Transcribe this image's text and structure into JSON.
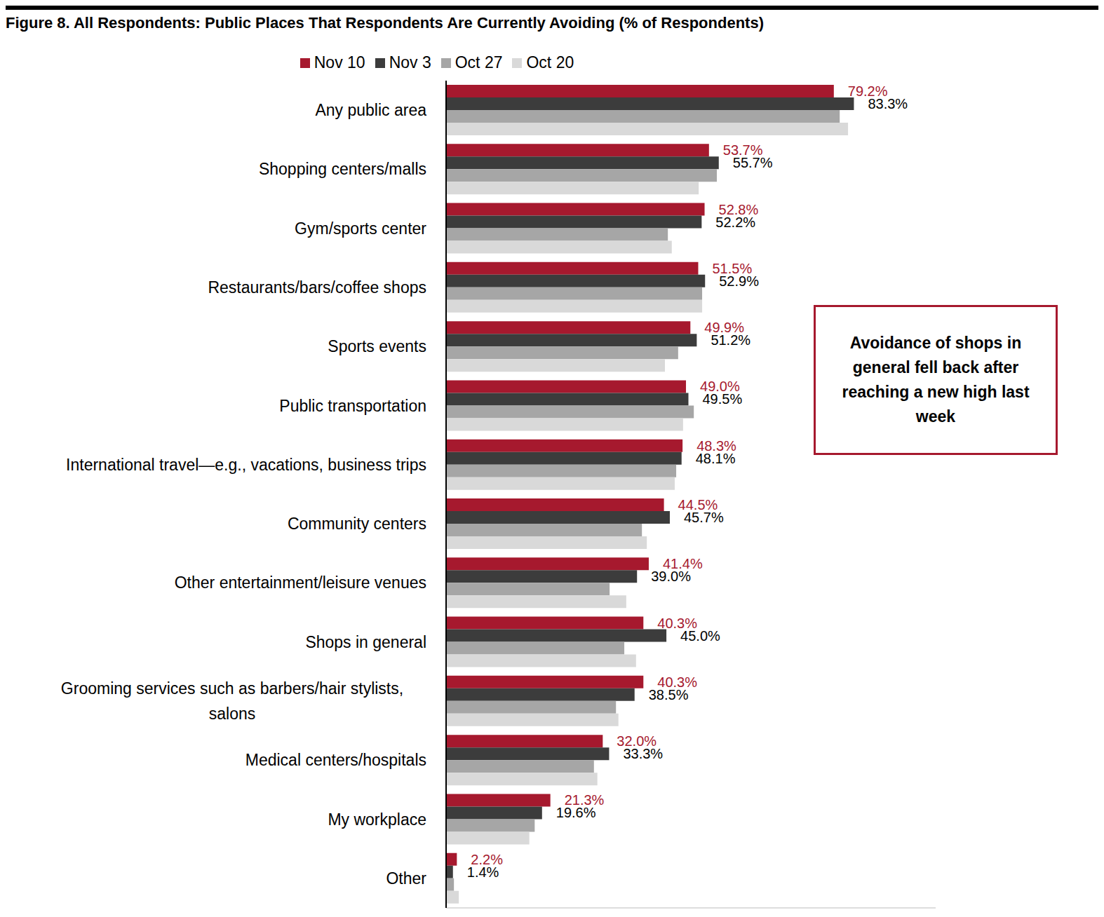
{
  "chart_data": {
    "type": "bar",
    "orientation": "horizontal",
    "title": "Figure 8. All Respondents: Public Places That Respondents Are Currently Avoiding (% of Respondents)",
    "annotation": "Avoidance of shops in general fell back after reaching a new high last week",
    "categories": [
      "Any public area",
      "Shopping centers/malls",
      "Gym/sports center",
      "Restaurants/bars/coffee shops",
      "Sports events",
      "Public transportation",
      "International travel—e.g., vacations, business trips",
      "Community centers",
      "Other entertainment/leisure venues",
      "Shops in general",
      "Grooming services such as barbers/hair stylists, salons",
      "Medical centers/hospitals",
      "My workplace",
      "Other"
    ],
    "series": [
      {
        "name": "Nov 10",
        "color": "#a6192e",
        "data_labels": true,
        "values": [
          79.2,
          53.7,
          52.8,
          51.5,
          49.9,
          49.0,
          48.3,
          44.5,
          41.4,
          40.3,
          40.3,
          32.0,
          21.3,
          2.2
        ],
        "value_labels": [
          "79.2%",
          "53.7%",
          "52.8%",
          "51.5%",
          "49.9%",
          "49.0%",
          "48.3%",
          "44.5%",
          "41.4%",
          "40.3%",
          "40.3%",
          "32.0%",
          "21.3%",
          "2.2%"
        ]
      },
      {
        "name": "Nov 3",
        "color": "#3c3c3c",
        "data_labels": true,
        "values": [
          83.3,
          55.7,
          52.2,
          52.9,
          51.2,
          49.5,
          48.1,
          45.7,
          39.0,
          45.0,
          38.5,
          33.3,
          19.6,
          1.4
        ],
        "value_labels": [
          "83.3%",
          "55.7%",
          "52.2%",
          "52.9%",
          "51.2%",
          "49.5%",
          "48.1%",
          "45.7%",
          "39.0%",
          "45.0%",
          "38.5%",
          "33.3%",
          "19.6%",
          "1.4%"
        ]
      },
      {
        "name": "Oct 27",
        "color": "#a6a6a6",
        "data_labels": false,
        "values": [
          80.4,
          55.3,
          45.3,
          52.3,
          47.4,
          50.6,
          47.0,
          40.0,
          33.4,
          36.4,
          34.7,
          30.2,
          18.1,
          1.6
        ]
      },
      {
        "name": "Oct 20",
        "color": "#d9d9d9",
        "data_labels": false,
        "values": [
          82.1,
          51.6,
          46.1,
          52.3,
          44.7,
          48.4,
          46.7,
          41.0,
          36.8,
          38.8,
          35.2,
          30.9,
          17.0,
          2.6
        ]
      }
    ],
    "xlim": [
      0,
      100
    ],
    "tick_labels": "y",
    "grid": false,
    "legend": "top"
  }
}
